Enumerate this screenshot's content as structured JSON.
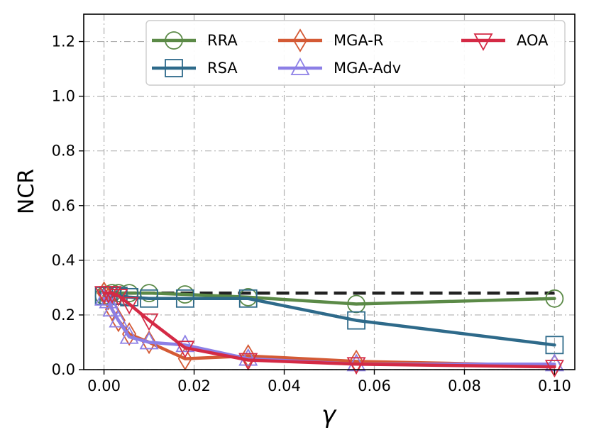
{
  "chart_data": {
    "type": "line",
    "title": "",
    "xlabel": "γ",
    "ylabel": "NCR",
    "xlim": [
      -0.0045,
      0.1045
    ],
    "ylim": [
      0.0,
      1.3
    ],
    "xticks": [
      0.0,
      0.02,
      0.04,
      0.06,
      0.08,
      0.1
    ],
    "xtick_labels": [
      "0.00",
      "0.02",
      "0.04",
      "0.06",
      "0.08",
      "0.10"
    ],
    "yticks": [
      0.0,
      0.2,
      0.4,
      0.6,
      0.8,
      1.0,
      1.2
    ],
    "ytick_labels": [
      "0.0",
      "0.2",
      "0.4",
      "0.6",
      "0.8",
      "1.0",
      "1.2"
    ],
    "grid": true,
    "legend_position": "top-right",
    "x": [
      0.0,
      0.001,
      0.0018,
      0.0032,
      0.0056,
      0.01,
      0.018,
      0.032,
      0.056,
      0.1
    ],
    "baseline": {
      "value": 0.28,
      "style": "dashed",
      "color": "#222222"
    },
    "series": [
      {
        "name": "RRA",
        "color": "#5b8a47",
        "marker": "circle",
        "values": [
          0.27,
          0.27,
          0.28,
          0.28,
          0.28,
          0.28,
          0.275,
          0.265,
          0.24,
          0.26
        ]
      },
      {
        "name": "RSA",
        "color": "#2e6a8a",
        "marker": "square",
        "values": [
          0.27,
          0.27,
          0.27,
          0.27,
          0.265,
          0.26,
          0.26,
          0.26,
          0.18,
          0.09
        ]
      },
      {
        "name": "MGA-R",
        "color": "#d45a35",
        "marker": "diamond",
        "values": [
          0.28,
          0.26,
          0.22,
          0.18,
          0.13,
          0.1,
          0.04,
          0.05,
          0.03,
          0.015
        ]
      },
      {
        "name": "MGA-Adv",
        "color": "#8c7fe6",
        "marker": "triangle-up",
        "values": [
          0.26,
          0.25,
          0.22,
          0.18,
          0.12,
          0.1,
          0.09,
          0.04,
          0.02,
          0.02
        ]
      },
      {
        "name": "AOA",
        "color": "#d42a45",
        "marker": "triangle-down",
        "values": [
          0.28,
          0.28,
          0.28,
          0.27,
          0.24,
          0.18,
          0.08,
          0.035,
          0.02,
          0.01
        ]
      }
    ]
  }
}
